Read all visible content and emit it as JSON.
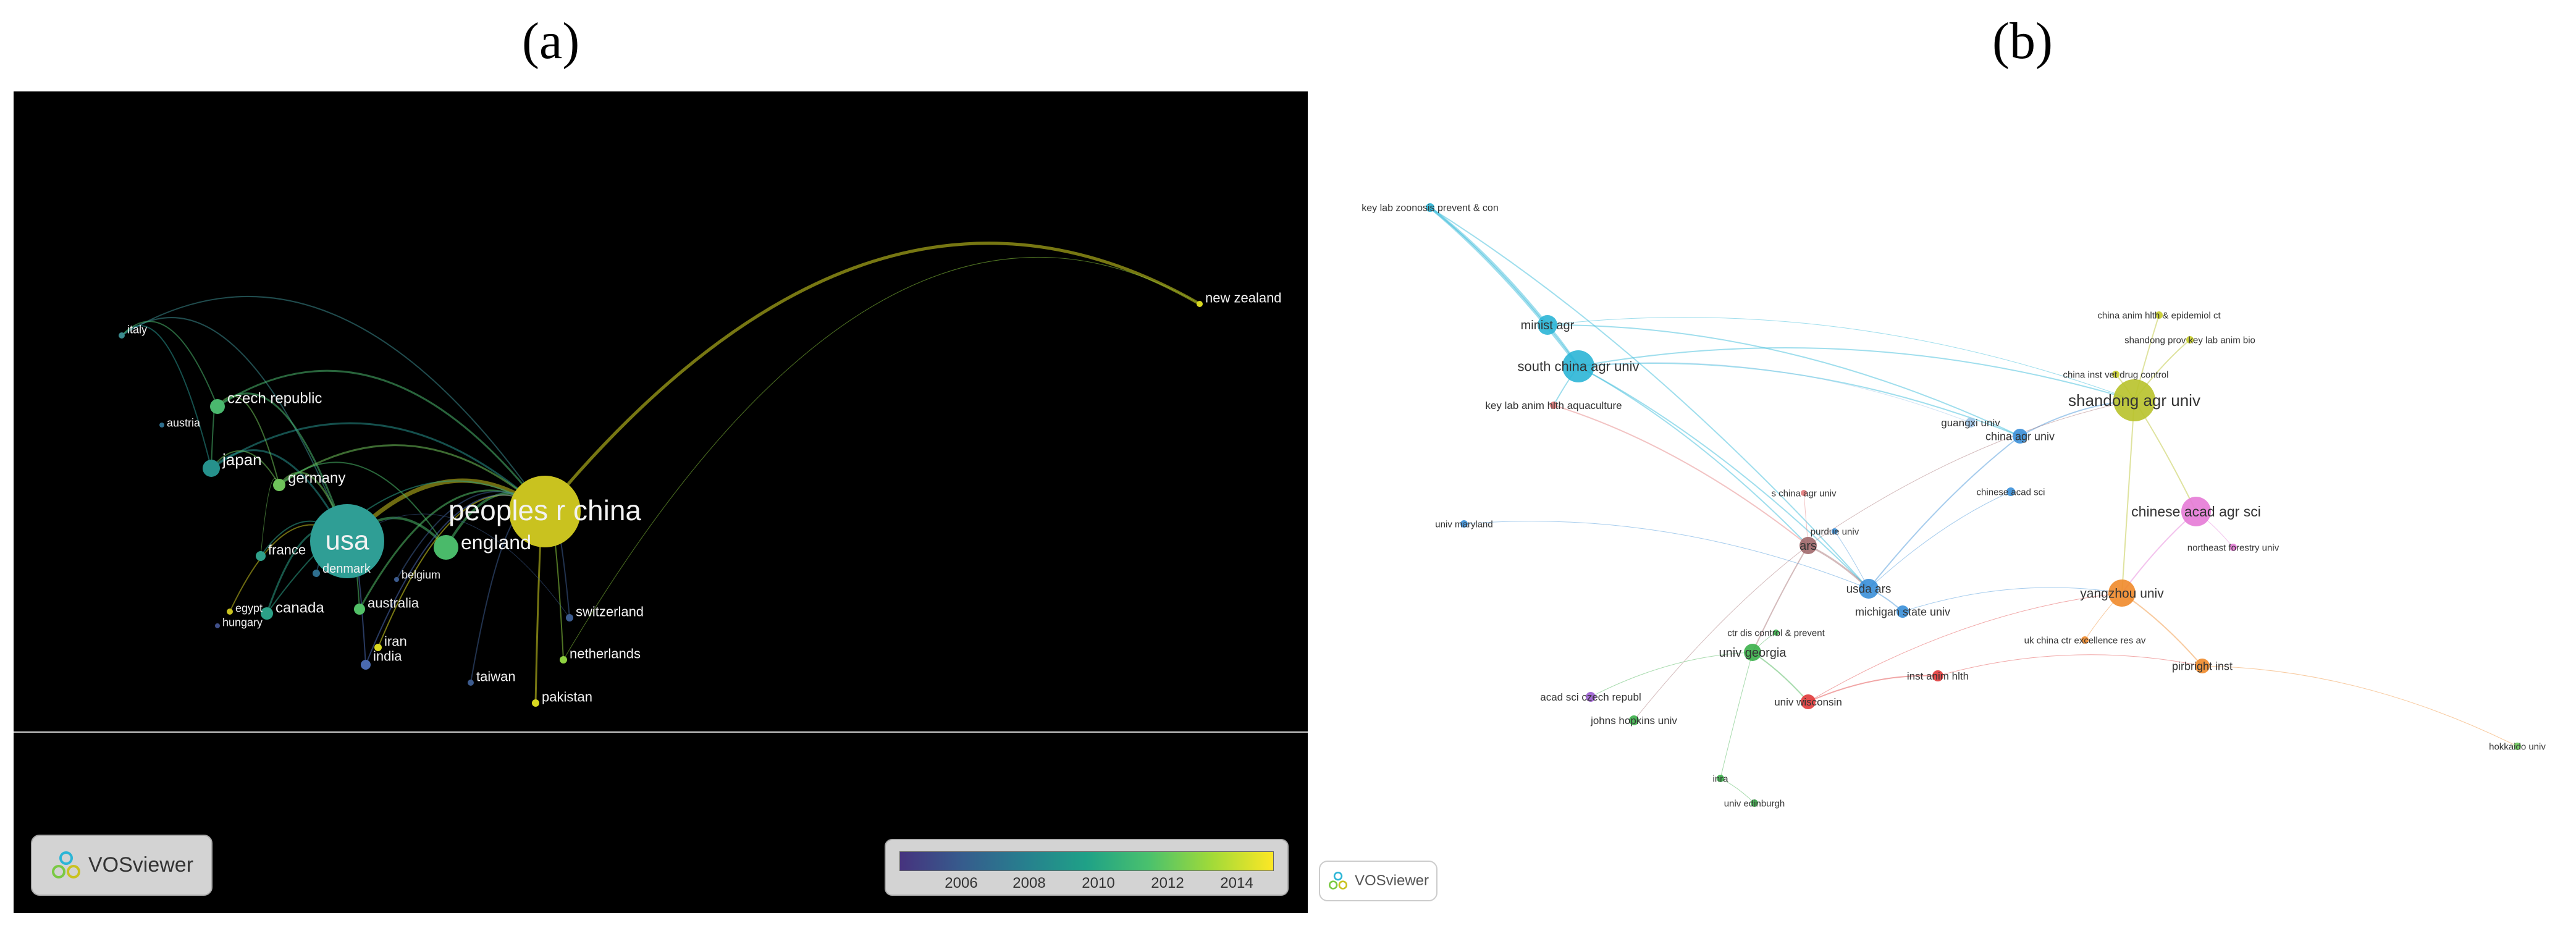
{
  "labels": {
    "a": "(a)",
    "b": "(b)"
  },
  "vosviewer": "VOSviewer",
  "colorbar": {
    "ticks": [
      "2006",
      "2008",
      "2010",
      "2012",
      "2014"
    ]
  },
  "panel_a": {
    "nodes": [
      {
        "id": "usa",
        "label": "usa",
        "color": "#2f9e95"
      },
      {
        "id": "china",
        "label": "peoples r china",
        "color": "#c9c21f"
      },
      {
        "id": "england",
        "label": "england",
        "color": "#4aba6a"
      },
      {
        "id": "italy",
        "label": "italy",
        "color": "#3a8a8e"
      },
      {
        "id": "czech",
        "label": "czech republic",
        "color": "#4ab86e"
      },
      {
        "id": "austria",
        "label": "austria",
        "color": "#2e6e8e"
      },
      {
        "id": "japan",
        "label": "japan",
        "color": "#26918c"
      },
      {
        "id": "germany",
        "label": "germany",
        "color": "#6fc35a"
      },
      {
        "id": "france",
        "label": "france",
        "color": "#2fa08a"
      },
      {
        "id": "denmark",
        "label": "denmark",
        "color": "#2e6e8e"
      },
      {
        "id": "belgium",
        "label": "belgium",
        "color": "#3c5b8e"
      },
      {
        "id": "canada",
        "label": "canada",
        "color": "#2ca187"
      },
      {
        "id": "egypt",
        "label": "egypt",
        "color": "#c9c21f"
      },
      {
        "id": "hungary",
        "label": "hungary",
        "color": "#40508a"
      },
      {
        "id": "australia",
        "label": "australia",
        "color": "#52c067"
      },
      {
        "id": "iran",
        "label": "iran",
        "color": "#d8d820"
      },
      {
        "id": "india",
        "label": "india",
        "color": "#4a6ab0"
      },
      {
        "id": "switzerland",
        "label": "switzerland",
        "color": "#3c5b8e"
      },
      {
        "id": "netherlands",
        "label": "netherlands",
        "color": "#8fd240"
      },
      {
        "id": "taiwan",
        "label": "taiwan",
        "color": "#3c5b8e"
      },
      {
        "id": "pakistan",
        "label": "pakistan",
        "color": "#d8d820"
      },
      {
        "id": "newzealand",
        "label": "new zealand",
        "color": "#d8d820"
      }
    ]
  },
  "panel_b": {
    "nodes": [
      {
        "id": "keylab",
        "label": "key lab zoonosis prevent & con",
        "color": "#2bb5d6"
      },
      {
        "id": "minist",
        "label": "minist agr",
        "color": "#2bb5d6"
      },
      {
        "id": "scau",
        "label": "south china agr univ",
        "color": "#2bb5d6"
      },
      {
        "id": "keylabaq",
        "label": "key lab anim hlth aquaculture",
        "color": "#e37a7a"
      },
      {
        "id": "guangxi",
        "label": "guangxi univ",
        "color": "#9ec5e8"
      },
      {
        "id": "chinaagr",
        "label": "china agr univ",
        "color": "#3a8fd8"
      },
      {
        "id": "schina",
        "label": "s china agr univ",
        "color": "#e37a7a"
      },
      {
        "id": "caas_b",
        "label": "chinese acad sci",
        "color": "#3a8fd8"
      },
      {
        "id": "maryland",
        "label": "univ maryland",
        "color": "#3a8fd8"
      },
      {
        "id": "purdue",
        "label": "purdue univ",
        "color": "#3a8fd8"
      },
      {
        "id": "ars",
        "label": "ars",
        "color": "#a0686a"
      },
      {
        "id": "usdaars",
        "label": "usda ars",
        "color": "#3a8fd8"
      },
      {
        "id": "msu",
        "label": "michigan state univ",
        "color": "#3a8fd8"
      },
      {
        "id": "cdc",
        "label": "ctr dis control & prevent",
        "color": "#3bb04a"
      },
      {
        "id": "uga",
        "label": "univ georgia",
        "color": "#3bb04a"
      },
      {
        "id": "acadczech",
        "label": "acad sci czech republ",
        "color": "#9a5cd0"
      },
      {
        "id": "jhu",
        "label": "johns hopkins univ",
        "color": "#3bb04a"
      },
      {
        "id": "wisc",
        "label": "univ wisconsin",
        "color": "#e03a3a"
      },
      {
        "id": "iah",
        "label": "inst anim hlth",
        "color": "#e03a3a"
      },
      {
        "id": "inra",
        "label": "inra",
        "color": "#3bb04a"
      },
      {
        "id": "edinburgh",
        "label": "univ edinburgh",
        "color": "#3bb04a"
      },
      {
        "id": "cahec",
        "label": "china anim hlth & epidemiol ct",
        "color": "#c7cc2a"
      },
      {
        "id": "sdkeylab",
        "label": "shandong prov key lab anim bio",
        "color": "#c7cc2a"
      },
      {
        "id": "civdc",
        "label": "china inst vet drug control",
        "color": "#c7cc2a"
      },
      {
        "id": "sdau",
        "label": "shandong agr univ",
        "color": "#b8c22a"
      },
      {
        "id": "caas",
        "label": "chinese acad agr sci",
        "color": "#e57ad6"
      },
      {
        "id": "nefu",
        "label": "northeast forestry univ",
        "color": "#e57ad6"
      },
      {
        "id": "yzu",
        "label": "yangzhou univ",
        "color": "#f08a2a"
      },
      {
        "id": "ukchina",
        "label": "uk china ctr excellence res av",
        "color": "#f08a2a"
      },
      {
        "id": "pirbright",
        "label": "pirbright inst",
        "color": "#f08a2a"
      },
      {
        "id": "hokkaido",
        "label": "hokkaido univ",
        "color": "#6ccb5a"
      }
    ]
  }
}
